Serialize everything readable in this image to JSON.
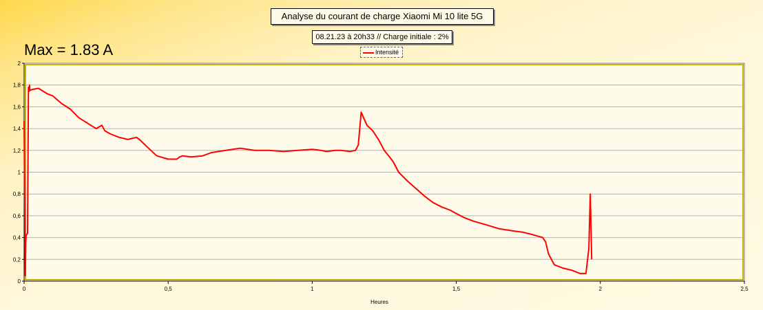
{
  "chart_data": {
    "type": "line",
    "title": "Analyse du courant de charge Xiaomi Mi 10 lite 5G",
    "subtitle": "08.21.23 à 20h33 // Charge initiale : 2%",
    "annotation": "Max = 1.83 A",
    "xlabel": "Heures",
    "ylabel": "",
    "xlim": [
      0,
      2.5
    ],
    "ylim": [
      0,
      2
    ],
    "x_ticks": [
      0,
      0.5,
      1,
      1.5,
      2,
      2.5
    ],
    "x_tick_labels": [
      "0",
      "0,5",
      "1",
      "1,5",
      "2",
      "2,5"
    ],
    "y_ticks": [
      0,
      0.2,
      0.4,
      0.6,
      0.8,
      1,
      1.2,
      1.4,
      1.6,
      1.8,
      2
    ],
    "y_tick_labels": [
      "0",
      "0,2",
      "0,4",
      "0,6",
      "0,8",
      "1",
      "1,2",
      "1,4",
      "1,6",
      "1,8",
      "2"
    ],
    "grid": true,
    "legend_position": "top-center",
    "series": [
      {
        "name": "Intensité",
        "color": "#ff0000",
        "x": [
          0,
          0.004,
          0.006,
          0.007,
          0.012,
          0.015,
          0.017,
          0.019,
          0.02,
          0.03,
          0.05,
          0.08,
          0.1,
          0.13,
          0.16,
          0.19,
          0.22,
          0.25,
          0.27,
          0.28,
          0.3,
          0.33,
          0.36,
          0.39,
          0.4,
          0.42,
          0.44,
          0.46,
          0.5,
          0.53,
          0.54,
          0.55,
          0.58,
          0.62,
          0.65,
          0.7,
          0.75,
          0.8,
          0.85,
          0.9,
          0.95,
          1.0,
          1.03,
          1.05,
          1.08,
          1.1,
          1.13,
          1.15,
          1.16,
          1.17,
          1.19,
          1.21,
          1.23,
          1.25,
          1.28,
          1.3,
          1.33,
          1.36,
          1.39,
          1.42,
          1.45,
          1.48,
          1.5,
          1.53,
          1.56,
          1.6,
          1.65,
          1.7,
          1.73,
          1.76,
          1.8,
          1.81,
          1.82,
          1.84,
          1.87,
          1.9,
          1.93,
          1.95,
          1.96,
          1.965,
          1.97
        ],
        "values": [
          1.47,
          0.05,
          0.38,
          0.42,
          0.44,
          1.78,
          1.74,
          1.8,
          1.75,
          1.76,
          1.77,
          1.72,
          1.7,
          1.63,
          1.58,
          1.5,
          1.45,
          1.4,
          1.43,
          1.38,
          1.35,
          1.32,
          1.3,
          1.32,
          1.3,
          1.25,
          1.2,
          1.15,
          1.12,
          1.12,
          1.14,
          1.15,
          1.14,
          1.15,
          1.18,
          1.2,
          1.22,
          1.2,
          1.2,
          1.19,
          1.2,
          1.21,
          1.2,
          1.19,
          1.2,
          1.2,
          1.19,
          1.2,
          1.25,
          1.55,
          1.43,
          1.38,
          1.3,
          1.2,
          1.1,
          1.0,
          0.92,
          0.85,
          0.78,
          0.72,
          0.68,
          0.65,
          0.62,
          0.58,
          0.55,
          0.52,
          0.48,
          0.46,
          0.45,
          0.43,
          0.4,
          0.36,
          0.25,
          0.15,
          0.12,
          0.1,
          0.07,
          0.07,
          0.3,
          0.8,
          0.2
        ]
      }
    ]
  }
}
